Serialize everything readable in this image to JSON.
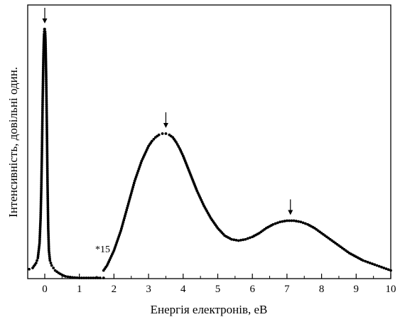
{
  "chart_data": {
    "type": "scatter",
    "xlabel": "Енергія електронів, еВ",
    "ylabel": "Інтенсивність, довільні один.",
    "xlim": [
      -0.5,
      10
    ],
    "xticks": [
      "0",
      "1",
      "2",
      "3",
      "4",
      "5",
      "6",
      "7",
      "8",
      "9",
      "10"
    ],
    "yticks_labeled": false,
    "grid": false,
    "annotation": "*15",
    "scale_factor_from_x": 1.7,
    "marker_color": "#000000",
    "peak_arrows_x": [
      0.0,
      3.5,
      7.1
    ],
    "series": [
      {
        "x": [
          -0.45,
          -0.35,
          -0.25,
          -0.2,
          -0.15,
          -0.12,
          -0.1,
          -0.08,
          -0.06,
          -0.04,
          -0.03,
          -0.02,
          -0.01,
          0.0,
          0.01,
          0.02,
          0.03,
          0.04,
          0.06,
          0.08,
          0.1,
          0.12,
          0.15,
          0.2,
          0.25,
          0.3,
          0.4,
          0.5,
          0.6,
          0.8,
          1.0,
          1.2,
          1.4,
          1.6,
          1.7
        ],
        "y": [
          0.035,
          0.04,
          0.06,
          0.08,
          0.14,
          0.24,
          0.36,
          0.52,
          0.72,
          0.88,
          0.94,
          0.98,
          1.0,
          1.0,
          0.99,
          0.96,
          0.9,
          0.82,
          0.62,
          0.38,
          0.2,
          0.11,
          0.07,
          0.05,
          0.04,
          0.03,
          0.02,
          0.012,
          0.006,
          0.002,
          0.0,
          0.0,
          0.0,
          0.0,
          0.0
        ]
      },
      {
        "x": [
          1.7,
          1.8,
          1.9,
          2.0,
          2.1,
          2.2,
          2.3,
          2.4,
          2.5,
          2.6,
          2.7,
          2.8,
          2.9,
          3.0,
          3.1,
          3.2,
          3.3,
          3.4,
          3.5,
          3.6,
          3.7,
          3.8,
          3.9,
          4.0,
          4.2,
          4.4,
          4.6,
          4.8,
          5.0,
          5.2,
          5.4,
          5.6,
          5.8,
          6.0,
          6.2,
          6.4,
          6.6,
          6.8,
          7.0,
          7.2,
          7.4,
          7.6,
          7.8,
          8.0,
          8.2,
          8.4,
          8.6,
          8.8,
          9.0,
          9.2,
          9.4,
          9.6,
          9.8,
          10.0
        ],
        "y": [
          0.03,
          0.05,
          0.08,
          0.11,
          0.15,
          0.19,
          0.24,
          0.29,
          0.34,
          0.39,
          0.43,
          0.47,
          0.5,
          0.53,
          0.55,
          0.565,
          0.575,
          0.58,
          0.58,
          0.575,
          0.565,
          0.545,
          0.52,
          0.49,
          0.42,
          0.35,
          0.29,
          0.24,
          0.2,
          0.17,
          0.155,
          0.15,
          0.155,
          0.165,
          0.18,
          0.2,
          0.215,
          0.225,
          0.23,
          0.23,
          0.225,
          0.215,
          0.2,
          0.18,
          0.16,
          0.14,
          0.12,
          0.1,
          0.085,
          0.07,
          0.06,
          0.05,
          0.04,
          0.03
        ]
      }
    ]
  }
}
